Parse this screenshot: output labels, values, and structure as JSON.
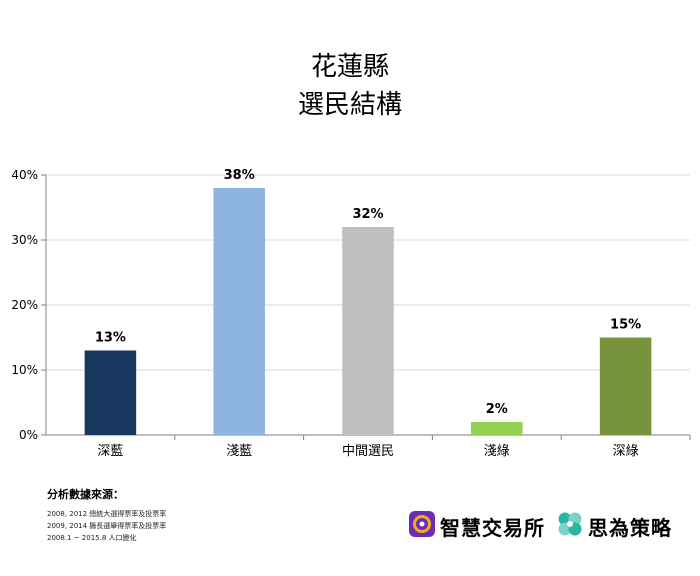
{
  "chart_data": {
    "type": "bar",
    "title_lines": [
      "花蓮縣",
      "選民結構"
    ],
    "categories": [
      "深藍",
      "淺藍",
      "中間選民",
      "淺綠",
      "深綠"
    ],
    "values": [
      13,
      38,
      32,
      2,
      15
    ],
    "value_labels": [
      "13%",
      "38%",
      "32%",
      "2%",
      "15%"
    ],
    "bar_colors": [
      "#17375e",
      "#8eb4e3",
      "#bfbfbf",
      "#92d050",
      "#77933c"
    ],
    "yticks": [
      0,
      10,
      20,
      30,
      40
    ],
    "ytick_labels": [
      "0%",
      "10%",
      "20%",
      "30%",
      "40%"
    ],
    "ylim": [
      0,
      40
    ],
    "grid": true
  },
  "source": {
    "heading": "分析數據來源：",
    "lines": [
      "2008, 2012 總統大選得票率及投票率",
      "2009, 2014 縣長選舉得票率及投票率",
      "2008.1 ~ 2015.8 人口變化"
    ]
  },
  "brands": {
    "first": {
      "name": "智慧交易所",
      "color": "#6a2fb0"
    },
    "second": {
      "name": "思為策略",
      "color": "#2bb5a5"
    }
  }
}
